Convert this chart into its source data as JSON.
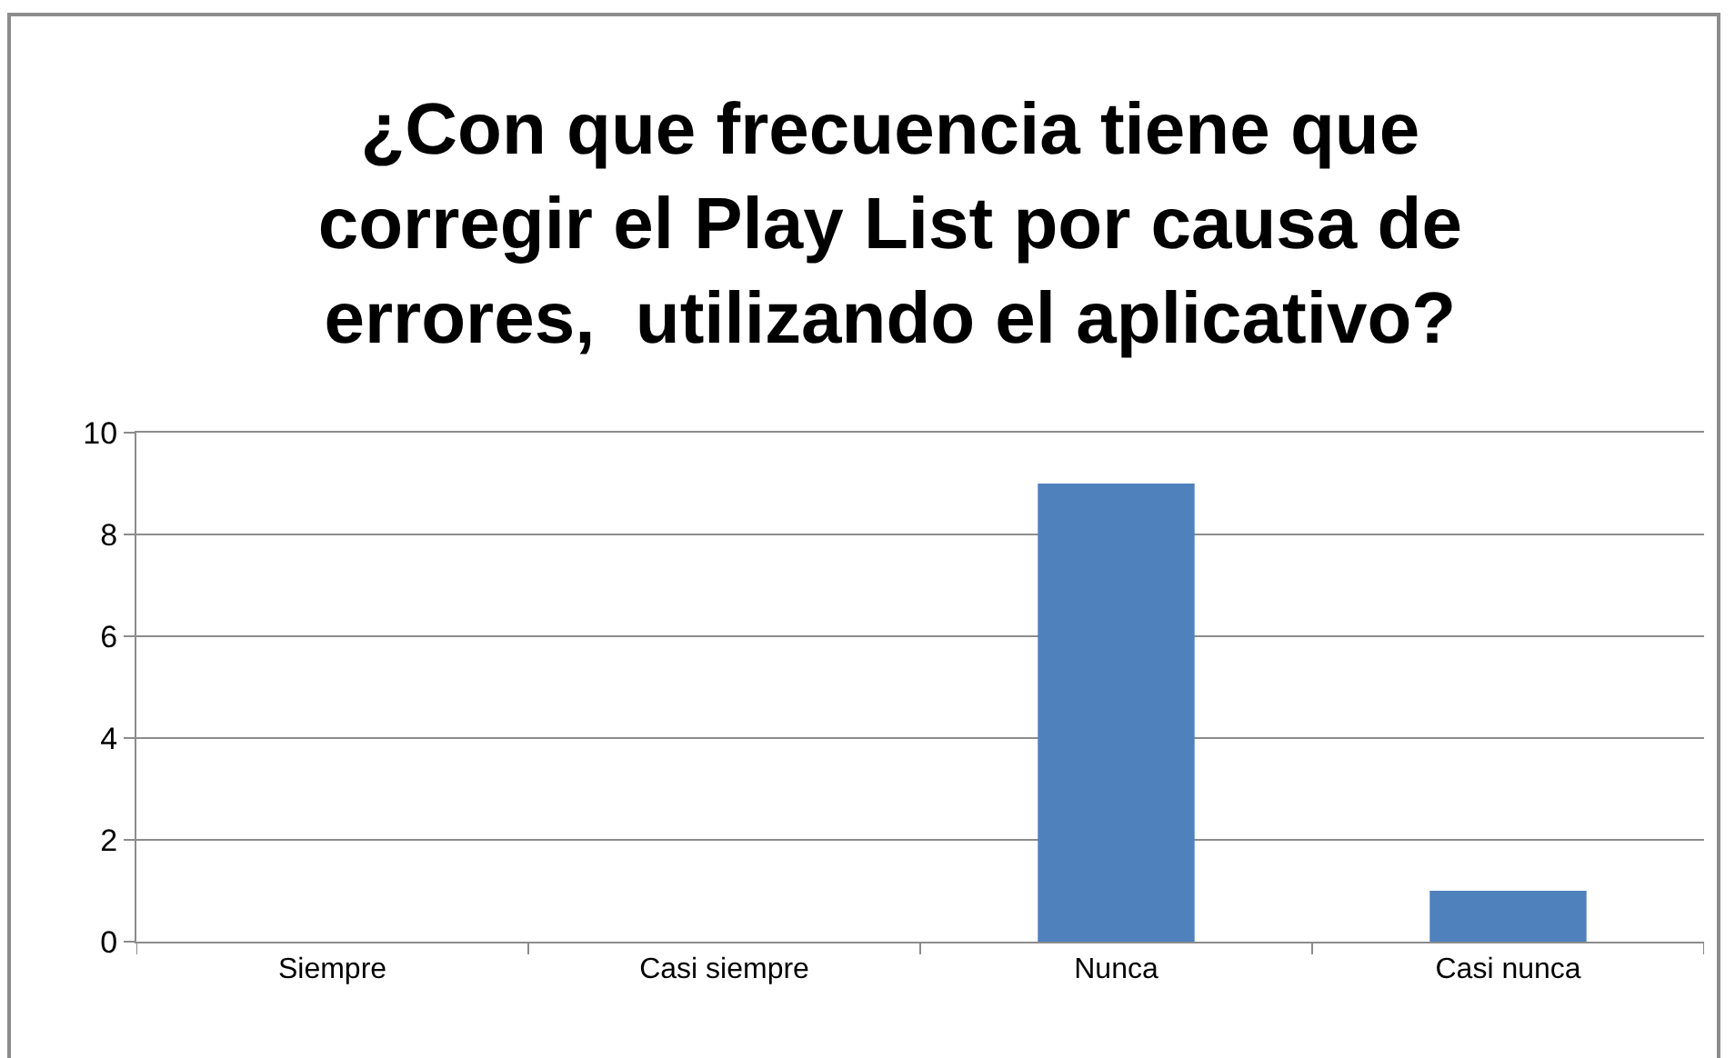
{
  "chart_data": {
    "type": "bar",
    "title": "¿Con que frecuencia tiene que\ncorregir el Play List por causa de\nerrores,  utilizando el aplicativo?",
    "categories": [
      "Siempre",
      "Casi siempre",
      "Nunca",
      "Casi nunca"
    ],
    "values": [
      0,
      0,
      9,
      1
    ],
    "color": "#4f81bd",
    "ylim": [
      0,
      10
    ],
    "yticks": [
      0,
      2,
      4,
      6,
      8,
      10
    ],
    "grid": "y"
  }
}
